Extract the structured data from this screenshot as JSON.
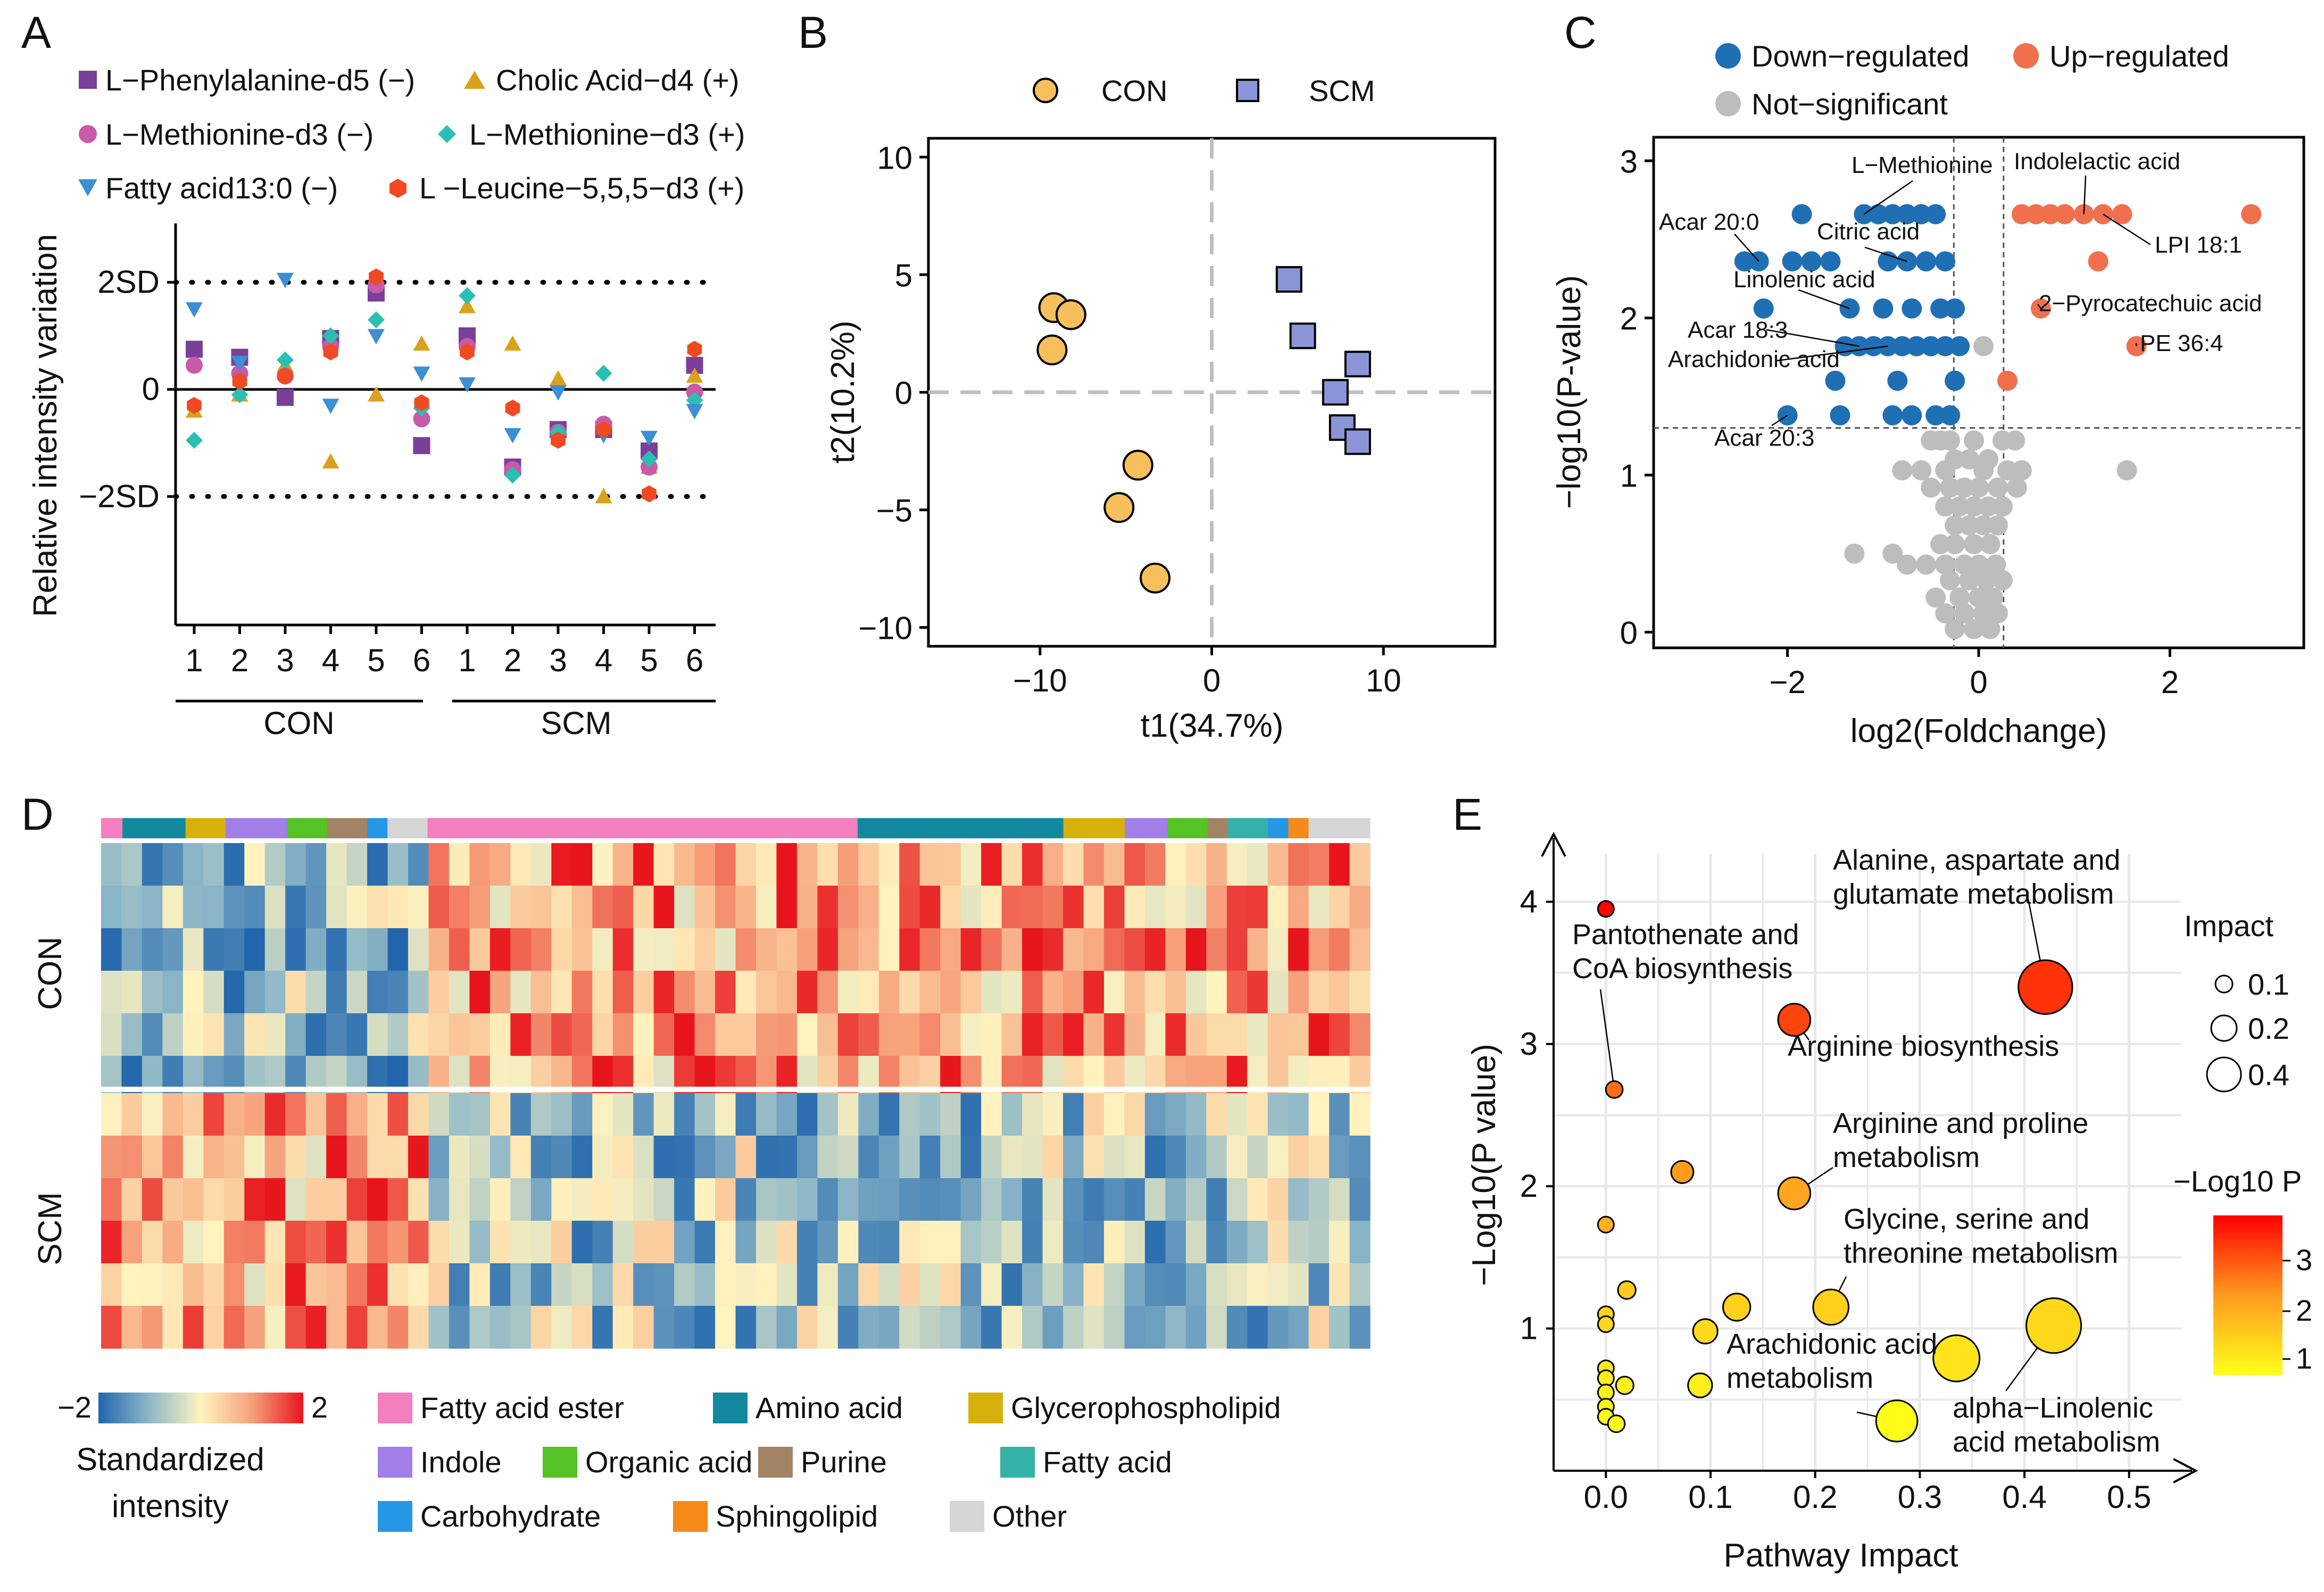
{
  "figure": {
    "letters": [
      "A",
      "B",
      "C",
      "D",
      "E"
    ]
  },
  "chart_data": [
    {
      "panel": "A",
      "type": "scatter",
      "ylabel": "Relative intensity variation",
      "y_ticks": [
        "2SD",
        "0",
        "−2SD"
      ],
      "ylim": [
        -4.4,
        3.1
      ],
      "categories": [
        "1",
        "2",
        "3",
        "4",
        "5",
        "6",
        "1",
        "2",
        "3",
        "4",
        "5",
        "6"
      ],
      "group_labels": [
        "CON",
        "SCM"
      ],
      "series": [
        {
          "name": "L−Phenylalanine-d5 (−)",
          "marker": "square",
          "color": "#7b3f99",
          "values": [
            0.75,
            0.6,
            -0.15,
            0.95,
            1.8,
            -1.05,
            1.0,
            -1.45,
            -0.75,
            -0.75,
            -1.15,
            0.45
          ]
        },
        {
          "name": "Cholic Acid−d4 (+)",
          "marker": "triangle-up",
          "color": "#d9a21b",
          "values": [
            -0.4,
            -0.1,
            0.45,
            -1.35,
            -0.1,
            0.85,
            1.55,
            0.85,
            0.2,
            -2.0,
            -1.45,
            0.25
          ]
        },
        {
          "name": "L−Methionine-d3 (−)",
          "marker": "circle",
          "color": "#c85aa8",
          "values": [
            0.45,
            0.3,
            0.25,
            0.8,
            1.95,
            -0.55,
            0.8,
            -1.5,
            -0.8,
            -0.65,
            -1.45,
            -0.05
          ]
        },
        {
          "name": "L−Methionine−d3 (+)",
          "marker": "diamond",
          "color": "#2bbfb3",
          "values": [
            -0.95,
            -0.1,
            0.55,
            1.0,
            1.3,
            -0.35,
            1.75,
            -1.6,
            -0.8,
            0.3,
            -1.3,
            -0.2
          ]
        },
        {
          "name": "Fatty acid13:0 (−)",
          "marker": "triangle-down",
          "color": "#3c8fd4",
          "values": [
            1.5,
            0.5,
            2.05,
            -0.3,
            1.0,
            0.3,
            0.1,
            -0.85,
            -0.05,
            -0.85,
            -0.9,
            -0.4
          ]
        },
        {
          "name": "L −Leucine−5,5,5−d3 (+)",
          "marker": "hexagon",
          "color": "#f04a23",
          "values": [
            -0.3,
            0.15,
            0.25,
            0.7,
            2.1,
            -0.25,
            0.7,
            -0.35,
            -0.95,
            -0.75,
            -1.95,
            0.75
          ]
        }
      ]
    },
    {
      "panel": "B",
      "type": "scatter",
      "xlabel": "t1(34.7%)",
      "ylabel": "t2(10.2%)",
      "xlim": [
        -16.5,
        16.5
      ],
      "ylim": [
        -10.8,
        10.8
      ],
      "x_ticks": [
        "−10",
        "0",
        "10"
      ],
      "y_ticks": [
        "10",
        "5",
        "0",
        "−5",
        "−10"
      ],
      "series": [
        {
          "name": "CON",
          "marker": "circle",
          "color": "#f7c05d",
          "points": [
            [
              -9.2,
              3.6
            ],
            [
              -8.2,
              3.3
            ],
            [
              -9.3,
              1.8
            ],
            [
              -4.3,
              -3.1
            ],
            [
              -5.4,
              -4.9
            ],
            [
              -3.3,
              -7.9
            ]
          ]
        },
        {
          "name": "SCM",
          "marker": "square",
          "color": "#8a95d8",
          "points": [
            [
              4.5,
              4.8
            ],
            [
              5.3,
              2.4
            ],
            [
              8.5,
              1.2
            ],
            [
              7.2,
              0.0
            ],
            [
              7.6,
              -1.5
            ],
            [
              8.5,
              -2.1
            ]
          ]
        }
      ]
    },
    {
      "panel": "C",
      "type": "scatter",
      "xlabel": "log2(Foldchange)",
      "ylabel": "−log10(P-value)",
      "xlim": [
        -3.4,
        3.4
      ],
      "ylim": [
        -0.1,
        3.15
      ],
      "x_ticks": [
        "−2",
        "0",
        "2"
      ],
      "y_ticks": [
        "0",
        "1",
        "2",
        "3"
      ],
      "legend": [
        "Down−regulated",
        "Up−regulated",
        "Not−significant"
      ],
      "colors": {
        "down": "#1f6fb5",
        "up": "#f0704e",
        "ns": "#bdbdbd"
      },
      "down": [
        [
          -1.85,
          2.66
        ],
        [
          -1.2,
          2.66
        ],
        [
          -1.05,
          2.66
        ],
        [
          -0.9,
          2.66
        ],
        [
          -0.75,
          2.66
        ],
        [
          -0.6,
          2.66
        ],
        [
          -0.45,
          2.66
        ],
        [
          -2.45,
          2.36
        ],
        [
          -2.3,
          2.36
        ],
        [
          -1.95,
          2.36
        ],
        [
          -1.75,
          2.36
        ],
        [
          -1.55,
          2.36
        ],
        [
          -0.95,
          2.36
        ],
        [
          -0.75,
          2.36
        ],
        [
          -0.55,
          2.36
        ],
        [
          -0.35,
          2.36
        ],
        [
          -2.25,
          2.06
        ],
        [
          -1.35,
          2.06
        ],
        [
          -1.0,
          2.06
        ],
        [
          -0.7,
          2.06
        ],
        [
          -0.4,
          2.06
        ],
        [
          -0.25,
          2.06
        ],
        [
          -1.4,
          1.82
        ],
        [
          -1.25,
          1.82
        ],
        [
          -1.1,
          1.82
        ],
        [
          -0.95,
          1.82
        ],
        [
          -0.8,
          1.82
        ],
        [
          -0.65,
          1.82
        ],
        [
          -0.5,
          1.82
        ],
        [
          -0.35,
          1.82
        ],
        [
          -0.2,
          1.82
        ],
        [
          -1.5,
          1.6
        ],
        [
          -0.85,
          1.6
        ],
        [
          -0.25,
          1.6
        ],
        [
          -2.0,
          1.38
        ],
        [
          -1.45,
          1.38
        ],
        [
          -0.9,
          1.38
        ],
        [
          -0.7,
          1.38
        ],
        [
          -0.45,
          1.38
        ],
        [
          -0.3,
          1.38
        ]
      ],
      "up": [
        [
          0.45,
          2.66
        ],
        [
          0.6,
          2.66
        ],
        [
          0.75,
          2.66
        ],
        [
          0.9,
          2.66
        ],
        [
          1.1,
          2.66
        ],
        [
          1.3,
          2.66
        ],
        [
          1.5,
          2.66
        ],
        [
          2.85,
          2.66
        ],
        [
          1.25,
          2.36
        ],
        [
          0.65,
          2.06
        ],
        [
          1.65,
          1.82
        ],
        [
          0.3,
          1.6
        ]
      ],
      "ns": [
        [
          0.05,
          1.82
        ],
        [
          -0.3,
          1.22
        ],
        [
          -0.4,
          1.22
        ],
        [
          -0.5,
          1.22
        ],
        [
          -0.05,
          1.22
        ],
        [
          0.25,
          1.22
        ],
        [
          0.38,
          1.22
        ],
        [
          -0.25,
          1.1
        ],
        [
          -0.1,
          1.1
        ],
        [
          0.1,
          1.1
        ],
        [
          -0.8,
          1.03
        ],
        [
          -0.6,
          1.03
        ],
        [
          -0.35,
          1.03
        ],
        [
          0.05,
          1.03
        ],
        [
          0.3,
          1.03
        ],
        [
          0.45,
          1.03
        ],
        [
          1.55,
          1.03
        ],
        [
          -0.5,
          0.92
        ],
        [
          -0.3,
          0.92
        ],
        [
          -0.15,
          0.92
        ],
        [
          0.0,
          0.92
        ],
        [
          0.2,
          0.92
        ],
        [
          0.4,
          0.92
        ],
        [
          -0.35,
          0.8
        ],
        [
          -0.2,
          0.8
        ],
        [
          -0.05,
          0.8
        ],
        [
          0.1,
          0.8
        ],
        [
          0.25,
          0.8
        ],
        [
          -0.25,
          0.68
        ],
        [
          -0.1,
          0.68
        ],
        [
          0.05,
          0.68
        ],
        [
          0.2,
          0.68
        ],
        [
          -0.4,
          0.56
        ],
        [
          -0.25,
          0.56
        ],
        [
          -0.05,
          0.56
        ],
        [
          0.12,
          0.56
        ],
        [
          -1.3,
          0.5
        ],
        [
          -0.9,
          0.5
        ],
        [
          -0.75,
          0.43
        ],
        [
          -0.55,
          0.43
        ],
        [
          -0.35,
          0.43
        ],
        [
          -0.15,
          0.43
        ],
        [
          0.0,
          0.43
        ],
        [
          0.18,
          0.43
        ],
        [
          -0.3,
          0.33
        ],
        [
          -0.1,
          0.33
        ],
        [
          0.08,
          0.33
        ],
        [
          0.25,
          0.33
        ],
        [
          -0.45,
          0.22
        ],
        [
          -0.2,
          0.22
        ],
        [
          0.0,
          0.22
        ],
        [
          0.15,
          0.22
        ],
        [
          -0.35,
          0.12
        ],
        [
          -0.15,
          0.12
        ],
        [
          0.05,
          0.12
        ],
        [
          0.2,
          0.12
        ],
        [
          -0.25,
          0.02
        ],
        [
          -0.05,
          0.02
        ],
        [
          0.12,
          0.02
        ]
      ],
      "labels": [
        "L−Methionine",
        "Acar 20:0",
        "Citric acid",
        "Linolenic acid",
        "Acar 18:3",
        "Arachidonic acid",
        "Acar 20:3",
        "Indolelactic acid",
        "LPI 18:1",
        "2−Pyrocatechuic acid",
        "PE 36:4"
      ]
    },
    {
      "panel": "D",
      "type": "heatmap",
      "rows": 12,
      "row_groups": [
        "CON",
        "SCM"
      ],
      "color_scale": {
        "min": -2,
        "max": 2,
        "title": "Standardized intensity"
      },
      "scale_labels": [
        "−2",
        "2"
      ],
      "categories": [
        {
          "name": "Fatty acid ester",
          "color": "#f47fbe"
        },
        {
          "name": "Amino acid",
          "color": "#12899e"
        },
        {
          "name": "Glycerophospholipid",
          "color": "#d6b10b"
        },
        {
          "name": "Indole",
          "color": "#a27ee8"
        },
        {
          "name": "Organic acid",
          "color": "#55c225"
        },
        {
          "name": "Purine",
          "color": "#a38366"
        },
        {
          "name": "Fatty acid",
          "color": "#35b2a7"
        },
        {
          "name": "Carbohydrate",
          "color": "#2696e6"
        },
        {
          "name": "Sphingolipid",
          "color": "#f58a18"
        },
        {
          "name": "Other",
          "color": "#d6d6d6"
        }
      ]
    },
    {
      "panel": "E",
      "type": "scatter",
      "xlabel": "Pathway Impact",
      "ylabel": "−Log10(P value)",
      "xlim": [
        -0.05,
        0.55
      ],
      "ylim": [
        0,
        4.45
      ],
      "x_ticks": [
        "0.0",
        "0.1",
        "0.2",
        "0.3",
        "0.4",
        "0.5"
      ],
      "y_ticks": [
        "1",
        "2",
        "3",
        "4"
      ],
      "size_legend": {
        "title": "Impact",
        "values": [
          "0.1",
          "0.2",
          "0.4"
        ]
      },
      "color_legend": {
        "title": "−Log10 P",
        "ticks": [
          "3",
          "2",
          "1"
        ]
      },
      "points": [
        {
          "x": 0.0,
          "y": 3.95,
          "impact": 0.0
        },
        {
          "x": 0.42,
          "y": 3.4,
          "impact": 0.42
        },
        {
          "x": 0.18,
          "y": 3.17,
          "impact": 0.18
        },
        {
          "x": 0.008,
          "y": 2.68,
          "impact": 0.01
        },
        {
          "x": 0.073,
          "y": 2.1,
          "impact": 0.07
        },
        {
          "x": 0.18,
          "y": 1.95,
          "impact": 0.18
        },
        {
          "x": 0.0,
          "y": 1.73,
          "impact": 0.0
        },
        {
          "x": 0.02,
          "y": 1.27,
          "impact": 0.02
        },
        {
          "x": 0.125,
          "y": 1.15,
          "impact": 0.125
        },
        {
          "x": 0.215,
          "y": 1.15,
          "impact": 0.215
        },
        {
          "x": 0.0,
          "y": 1.1,
          "impact": 0.0
        },
        {
          "x": 0.0,
          "y": 1.03,
          "impact": 0.0
        },
        {
          "x": 0.428,
          "y": 1.02,
          "impact": 0.43
        },
        {
          "x": 0.095,
          "y": 0.98,
          "impact": 0.095
        },
        {
          "x": 0.335,
          "y": 0.79,
          "impact": 0.335
        },
        {
          "x": 0.0,
          "y": 0.72,
          "impact": 0.0
        },
        {
          "x": 0.0,
          "y": 0.65,
          "impact": 0.0
        },
        {
          "x": 0.018,
          "y": 0.6,
          "impact": 0.018
        },
        {
          "x": 0.09,
          "y": 0.6,
          "impact": 0.09
        },
        {
          "x": 0.0,
          "y": 0.55,
          "impact": 0.0
        },
        {
          "x": 0.0,
          "y": 0.45,
          "impact": 0.0
        },
        {
          "x": 0.0,
          "y": 0.38,
          "impact": 0.0
        },
        {
          "x": 0.01,
          "y": 0.33,
          "impact": 0.01
        },
        {
          "x": 0.278,
          "y": 0.35,
          "impact": 0.28
        }
      ],
      "annotations": [
        "Alanine, aspartate and glutamate metabolism",
        "Pantothenate and CoA biosynthesis",
        "Arginine biosynthesis",
        "Arginine and proline metabolism",
        "Glycine, serine and threonine metabolism",
        "Arachidonic acid metabolism",
        "alpha−Linolenic acid metabolism"
      ]
    }
  ]
}
